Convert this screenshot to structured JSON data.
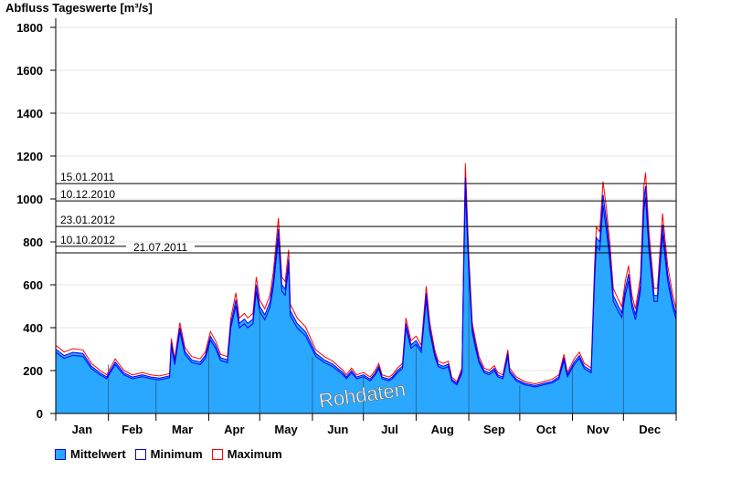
{
  "chart_data": {
    "type": "area",
    "title": "Abfluss Tageswerte [m³/s]",
    "ylim": [
      0,
      1850
    ],
    "yticks": [
      0,
      200,
      400,
      600,
      800,
      1000,
      1200,
      1400,
      1600,
      1800
    ],
    "grid": true,
    "months": [
      "Jan",
      "Feb",
      "Mar",
      "Apr",
      "May",
      "Jun",
      "Jul",
      "Aug",
      "Sep",
      "Oct",
      "Nov",
      "Dec"
    ],
    "month_start_days": [
      0,
      31,
      59,
      90,
      120,
      151,
      181,
      212,
      243,
      273,
      304,
      334,
      365
    ],
    "reference_lines": [
      {
        "label": "15.01.2011",
        "value": 1072
      },
      {
        "label": "10.12.2010",
        "value": 991
      },
      {
        "label": "23.01.2012",
        "value": 872
      },
      {
        "label": "10.10.2012",
        "value": 779
      },
      {
        "label": "21.07.2011",
        "value": 749
      }
    ],
    "watermark": "Rohdaten",
    "legend_position": "bottom-left",
    "series": [
      {
        "name": "Mittelwert",
        "color": "#2aa8ff"
      },
      {
        "name": "Minimum",
        "color": "#0000ff",
        "ratio_to_mean": 0.95
      },
      {
        "name": "Maximum",
        "color": "#ff0000",
        "ratio_to_mean": 1.06
      }
    ],
    "mean": {
      "days": [
        0,
        5,
        10,
        16,
        21,
        26,
        30,
        35,
        40,
        45,
        51,
        56,
        61,
        67,
        68,
        70,
        73,
        76,
        80,
        85,
        88,
        91,
        94,
        97,
        101,
        103,
        106,
        108,
        111,
        113,
        116,
        118,
        120,
        123,
        126,
        128,
        131,
        133,
        135,
        137,
        138,
        142,
        147,
        153,
        158,
        163,
        169,
        171,
        174,
        177,
        181,
        185,
        188,
        190,
        192,
        196,
        198,
        201,
        204,
        206,
        209,
        212,
        215,
        218,
        220,
        223,
        225,
        228,
        231,
        233,
        236,
        239,
        240,
        241,
        243,
        245,
        247,
        249,
        252,
        255,
        258,
        260,
        263,
        266,
        267,
        271,
        276,
        282,
        287,
        292,
        296,
        299,
        301,
        305,
        308,
        311,
        315,
        317,
        318,
        320,
        322,
        324,
        326,
        328,
        331,
        333,
        335,
        337,
        339,
        341,
        344,
        346,
        347,
        349,
        352,
        354,
        357,
        358,
        360,
        363,
        365
      ],
      "values": [
        300,
        270,
        285,
        280,
        220,
        190,
        170,
        240,
        190,
        170,
        180,
        170,
        165,
        175,
        330,
        240,
        400,
        290,
        250,
        240,
        270,
        360,
        320,
        260,
        250,
        420,
        530,
        420,
        440,
        420,
        440,
        600,
        500,
        460,
        520,
        620,
        860,
        600,
        580,
        720,
        480,
        420,
        380,
        280,
        250,
        230,
        190,
        170,
        200,
        170,
        180,
        160,
        190,
        220,
        170,
        160,
        170,
        200,
        220,
        420,
        320,
        340,
        300,
        560,
        400,
        280,
        230,
        220,
        230,
        160,
        140,
        200,
        700,
        1100,
        700,
        400,
        320,
        250,
        200,
        190,
        210,
        180,
        170,
        280,
        200,
        160,
        140,
        130,
        140,
        150,
        170,
        260,
        180,
        240,
        270,
        220,
        200,
        650,
        820,
        800,
        1020,
        900,
        750,
        550,
        500,
        470,
        580,
        650,
        520,
        460,
        600,
        1000,
        1060,
        800,
        550,
        550,
        880,
        800,
        650,
        520,
        460
      ]
    }
  }
}
